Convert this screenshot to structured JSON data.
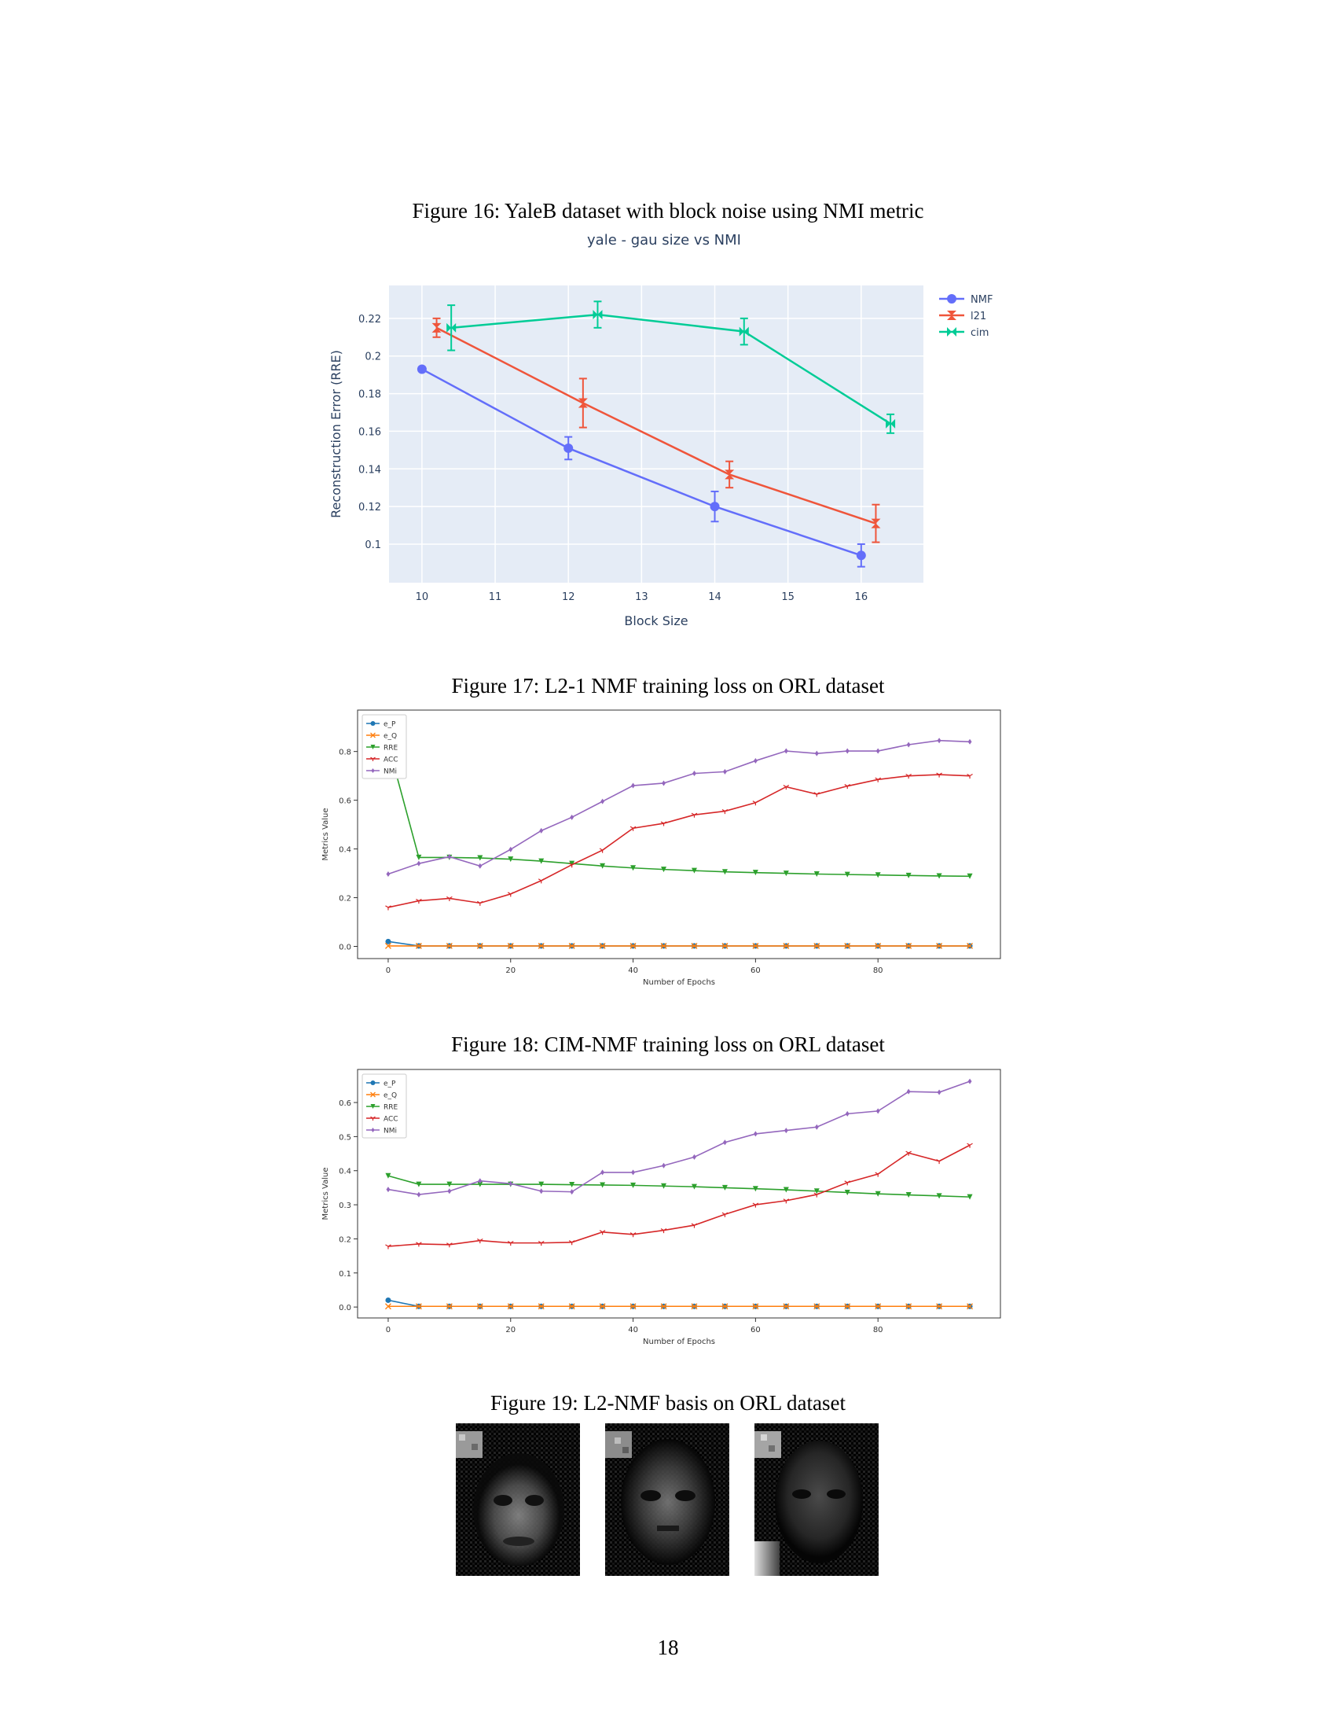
{
  "figures": {
    "fig16": {
      "caption": "Figure 16: YaleB dataset with block noise using NMI metric"
    },
    "fig17": {
      "caption": "Figure 17: L2-1 NMF training loss on ORL dataset"
    },
    "fig18": {
      "caption": "Figure 18: CIM-NMF training loss on ORL dataset"
    },
    "fig19": {
      "caption": "Figure 19: L2-NMF basis on ORL dataset"
    }
  },
  "page_number": "18",
  "chart_data": [
    {
      "id": "fig16",
      "type": "line",
      "title": "yale - gau size vs NMI",
      "xlabel": "Block Size",
      "ylabel": "Reconstruction Error (RRE)",
      "xlim": [
        9.55,
        16.85
      ],
      "ylim": [
        0.0795,
        0.2375
      ],
      "xticks": [
        10,
        11,
        12,
        13,
        14,
        15,
        16
      ],
      "yticks": [
        0.1,
        0.12,
        0.14,
        0.16,
        0.18,
        0.2,
        0.22
      ],
      "ytick_labels": [
        "0.1",
        "0.12",
        "0.14",
        "0.16",
        "0.18",
        "0.2",
        "0.22"
      ],
      "grid": true,
      "legend": "top-right",
      "series": [
        {
          "name": "NMF",
          "color": "#636efa",
          "marker": "circle",
          "x": [
            10,
            12,
            14,
            16
          ],
          "y": [
            0.193,
            0.151,
            0.12,
            0.094
          ],
          "err": [
            0,
            0.006,
            0.008,
            0.006
          ]
        },
        {
          "name": "l21",
          "color": "#ef553b",
          "marker": "hourglass",
          "x": [
            10.2,
            12.2,
            14.2,
            16.2
          ],
          "y": [
            0.215,
            0.175,
            0.137,
            0.111
          ],
          "err": [
            0.005,
            0.013,
            0.007,
            0.01
          ]
        },
        {
          "name": "cim",
          "color": "#00cc96",
          "marker": "bowtie",
          "x": [
            10.4,
            12.4,
            14.4,
            16.4
          ],
          "y": [
            0.215,
            0.222,
            0.213,
            0.164
          ],
          "err": [
            0.012,
            0.007,
            0.007,
            0.005
          ]
        }
      ]
    },
    {
      "id": "fig17",
      "type": "line",
      "xlabel": "Number of Epochs",
      "ylabel": "Metrics Value",
      "xlim": [
        -5,
        100
      ],
      "ylim": [
        -0.05,
        0.97
      ],
      "xticks": [
        0,
        20,
        40,
        60,
        80
      ],
      "yticks": [
        0.0,
        0.2,
        0.4,
        0.6,
        0.8
      ],
      "ytick_labels": [
        "0.0",
        "0.2",
        "0.4",
        "0.6",
        "0.8"
      ],
      "grid": false,
      "legend": "top-left",
      "x": [
        0,
        5,
        10,
        15,
        20,
        25,
        30,
        35,
        40,
        45,
        50,
        55,
        60,
        65,
        70,
        75,
        80,
        85,
        90,
        95
      ],
      "series": [
        {
          "name": "e_P",
          "color": "#1f77b4",
          "marker": "o",
          "values": [
            0.02,
            0.002,
            0.002,
            0.002,
            0.002,
            0.002,
            0.002,
            0.002,
            0.002,
            0.002,
            0.002,
            0.002,
            0.002,
            0.002,
            0.002,
            0.002,
            0.002,
            0.002,
            0.002,
            0.002
          ]
        },
        {
          "name": "e_Q",
          "color": "#ff7f0e",
          "marker": "x",
          "values": [
            0.002,
            0.002,
            0.002,
            0.002,
            0.002,
            0.002,
            0.002,
            0.002,
            0.002,
            0.002,
            0.002,
            0.002,
            0.002,
            0.002,
            0.002,
            0.002,
            0.002,
            0.002,
            0.002,
            0.002
          ]
        },
        {
          "name": "RRE",
          "color": "#2ca02c",
          "marker": "v",
          "values": [
            0.83,
            0.365,
            0.365,
            0.363,
            0.358,
            0.35,
            0.34,
            0.33,
            0.322,
            0.316,
            0.311,
            0.306,
            0.303,
            0.3,
            0.297,
            0.295,
            0.293,
            0.291,
            0.289,
            0.288
          ]
        },
        {
          "name": "ACC",
          "color": "#d62728",
          "marker": "1",
          "values": [
            0.16,
            0.187,
            0.197,
            0.178,
            0.215,
            0.27,
            0.335,
            0.395,
            0.485,
            0.505,
            0.54,
            0.555,
            0.59,
            0.655,
            0.625,
            0.658,
            0.685,
            0.7,
            0.705,
            0.7
          ]
        },
        {
          "name": "NMi",
          "color": "#9467bd",
          "marker": "d",
          "values": [
            0.297,
            0.34,
            0.368,
            0.33,
            0.398,
            0.475,
            0.53,
            0.595,
            0.66,
            0.67,
            0.71,
            0.717,
            0.762,
            0.802,
            0.792,
            0.802,
            0.802,
            0.828,
            0.845,
            0.84
          ]
        }
      ]
    },
    {
      "id": "fig18",
      "type": "line",
      "xlabel": "Number of Epochs",
      "ylabel": "Metrics Value",
      "xlim": [
        -5,
        100
      ],
      "ylim": [
        -0.032,
        0.697
      ],
      "xticks": [
        0,
        20,
        40,
        60,
        80
      ],
      "yticks": [
        0.0,
        0.1,
        0.2,
        0.3,
        0.4,
        0.5,
        0.6
      ],
      "ytick_labels": [
        "0.0",
        "0.1",
        "0.2",
        "0.3",
        "0.4",
        "0.5",
        "0.6"
      ],
      "grid": false,
      "legend": "top-left",
      "x": [
        0,
        5,
        10,
        15,
        20,
        25,
        30,
        35,
        40,
        45,
        50,
        55,
        60,
        65,
        70,
        75,
        80,
        85,
        90,
        95
      ],
      "series": [
        {
          "name": "e_P",
          "color": "#1f77b4",
          "marker": "o",
          "values": [
            0.02,
            0.002,
            0.002,
            0.002,
            0.002,
            0.002,
            0.002,
            0.002,
            0.002,
            0.002,
            0.002,
            0.002,
            0.002,
            0.002,
            0.002,
            0.002,
            0.002,
            0.002,
            0.002,
            0.002
          ]
        },
        {
          "name": "e_Q",
          "color": "#ff7f0e",
          "marker": "x",
          "values": [
            0.002,
            0.002,
            0.002,
            0.002,
            0.002,
            0.002,
            0.002,
            0.002,
            0.002,
            0.002,
            0.002,
            0.002,
            0.002,
            0.002,
            0.002,
            0.002,
            0.002,
            0.002,
            0.002,
            0.002
          ]
        },
        {
          "name": "RRE",
          "color": "#2ca02c",
          "marker": "v",
          "values": [
            0.385,
            0.36,
            0.36,
            0.36,
            0.36,
            0.36,
            0.359,
            0.358,
            0.357,
            0.355,
            0.353,
            0.35,
            0.347,
            0.344,
            0.34,
            0.336,
            0.332,
            0.329,
            0.326,
            0.323
          ]
        },
        {
          "name": "ACC",
          "color": "#d62728",
          "marker": "1",
          "values": [
            0.178,
            0.185,
            0.183,
            0.195,
            0.188,
            0.188,
            0.19,
            0.22,
            0.213,
            0.225,
            0.24,
            0.272,
            0.3,
            0.312,
            0.33,
            0.365,
            0.39,
            0.452,
            0.428,
            0.475
          ]
        },
        {
          "name": "NMi",
          "color": "#9467bd",
          "marker": "d",
          "values": [
            0.345,
            0.33,
            0.34,
            0.37,
            0.362,
            0.34,
            0.338,
            0.395,
            0.395,
            0.415,
            0.44,
            0.483,
            0.508,
            0.518,
            0.528,
            0.567,
            0.575,
            0.632,
            0.63,
            0.662
          ]
        }
      ]
    }
  ]
}
